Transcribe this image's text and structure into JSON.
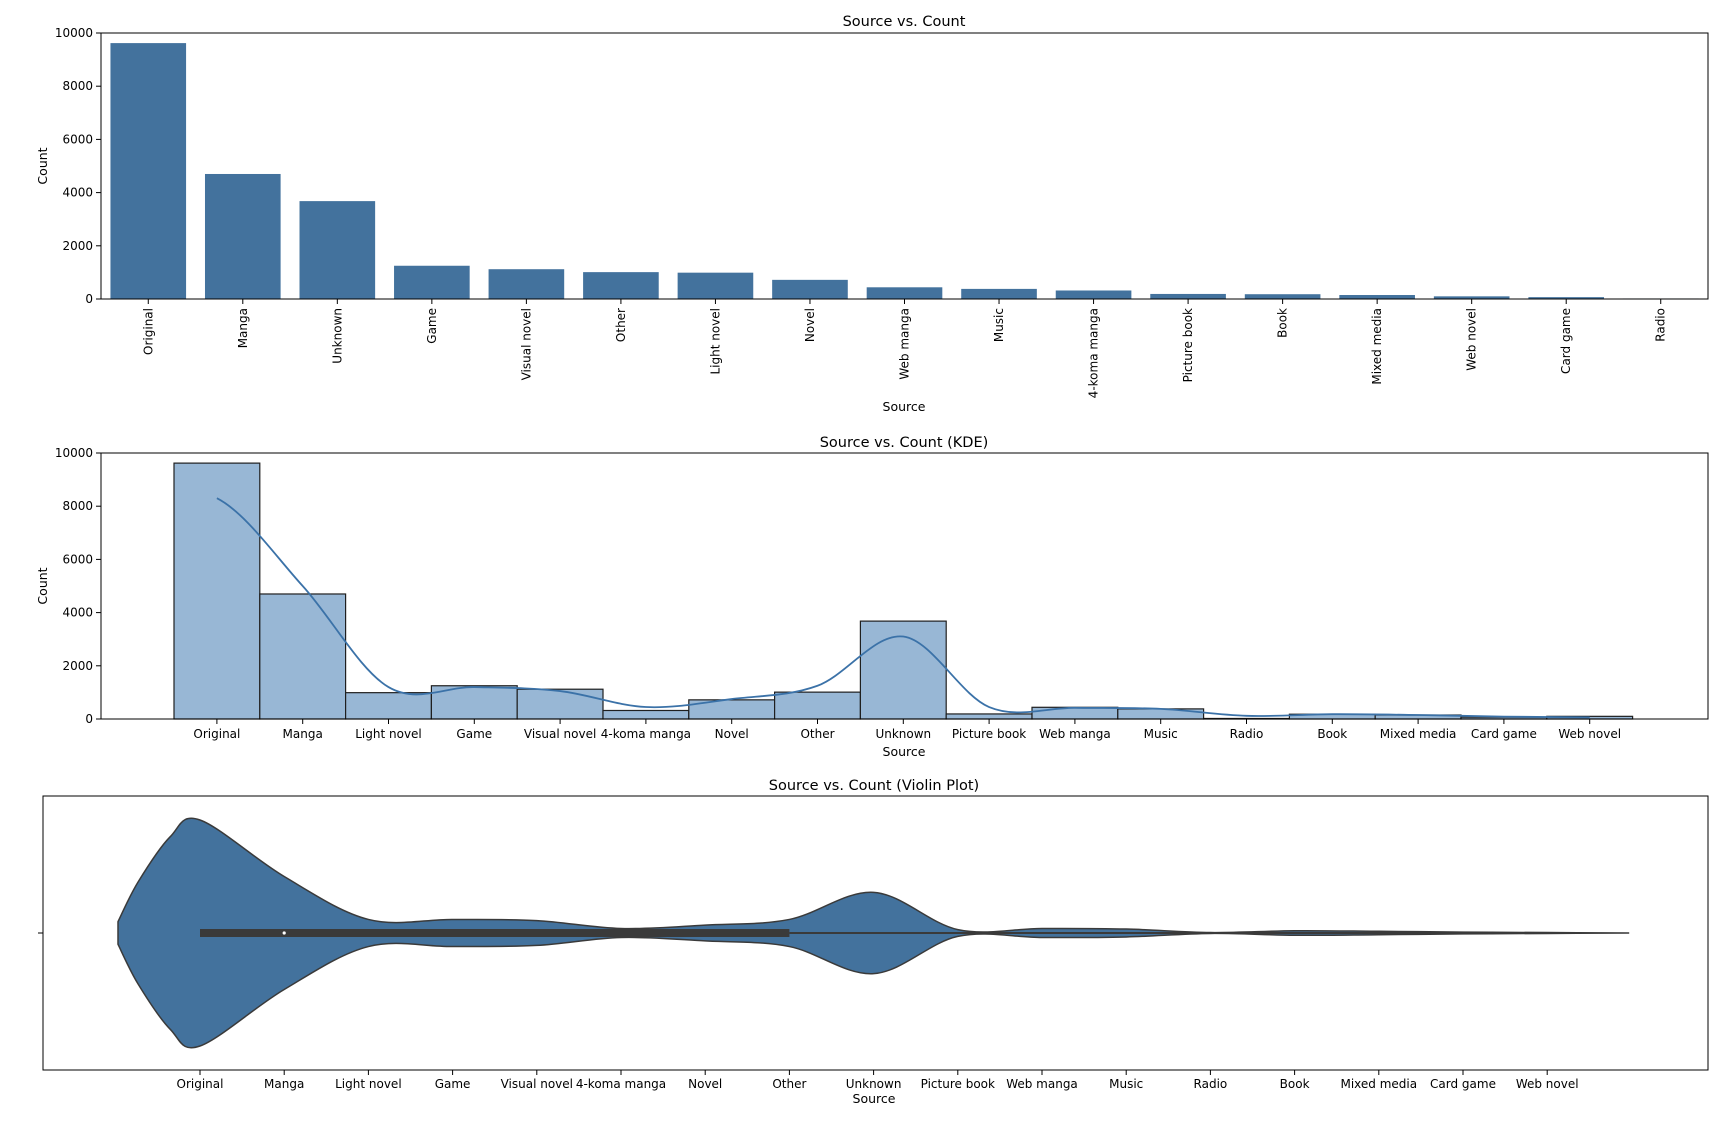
{
  "colors": {
    "bar": "#43729d",
    "hist_fill": "#98b7d5",
    "hist_edge": "#1f1f1f",
    "kde_line": "#3b72a8",
    "violin_fill": "#43729d",
    "violin_edge": "#3a3a3a",
    "box": "#3a3a3a"
  },
  "chart_data": [
    {
      "type": "bar",
      "title": "Source vs. Count",
      "xlabel": "Source",
      "ylabel": "Count",
      "ylim": [
        0,
        10000
      ],
      "yticks": [
        0,
        2000,
        4000,
        6000,
        8000,
        10000
      ],
      "categories": [
        "Original",
        "Manga",
        "Unknown",
        "Game",
        "Visual novel",
        "Other",
        "Light novel",
        "Novel",
        "Web manga",
        "Music",
        "4-koma manga",
        "Picture book",
        "Book",
        "Mixed media",
        "Web novel",
        "Card game",
        "Radio"
      ],
      "values": [
        9620,
        4700,
        3680,
        1250,
        1120,
        1010,
        990,
        720,
        440,
        380,
        320,
        190,
        180,
        150,
        100,
        70,
        20
      ],
      "tick_rotation": -90,
      "grid": false
    },
    {
      "type": "histogram",
      "title": "Source vs. Count (KDE)",
      "xlabel": "Source",
      "ylabel": "Count",
      "ylim": [
        0,
        10000
      ],
      "yticks": [
        0,
        2000,
        4000,
        6000,
        8000,
        10000
      ],
      "categories": [
        "Original",
        "Manga",
        "Light novel",
        "Game",
        "Visual novel",
        "4-koma manga",
        "Novel",
        "Other",
        "Unknown",
        "Picture book",
        "Web manga",
        "Music",
        "Radio",
        "Book",
        "Mixed media",
        "Card game",
        "Web novel"
      ],
      "values": [
        9620,
        4700,
        990,
        1250,
        1120,
        320,
        720,
        1010,
        3680,
        190,
        440,
        380,
        20,
        180,
        150,
        70,
        100
      ],
      "kde": {
        "x": [
          "Original",
          "Manga",
          "Light novel",
          "Game",
          "Visual novel",
          "4-koma manga",
          "Novel",
          "Other",
          "Unknown",
          "Picture book",
          "Web manga",
          "Music",
          "Radio",
          "Book",
          "Mixed media",
          "Card game",
          "Web novel"
        ],
        "y": [
          8300,
          5000,
          1200,
          1200,
          1050,
          450,
          750,
          1250,
          3100,
          450,
          420,
          380,
          120,
          180,
          150,
          90,
          60
        ]
      },
      "grid": false
    },
    {
      "type": "violin",
      "title": "Source vs. Count (Violin Plot)",
      "xlabel": "Source",
      "ylabel": "",
      "categories": [
        "Original",
        "Manga",
        "Light novel",
        "Game",
        "Visual novel",
        "4-koma manga",
        "Novel",
        "Other",
        "Unknown",
        "Picture book",
        "Web manga",
        "Music",
        "Radio",
        "Book",
        "Mixed media",
        "Card game",
        "Web novel"
      ],
      "density": [
        1.0,
        0.5,
        0.12,
        0.12,
        0.11,
        0.04,
        0.07,
        0.12,
        0.36,
        0.03,
        0.04,
        0.035,
        0.004,
        0.02,
        0.015,
        0.008,
        0.004
      ],
      "box": {
        "q1": "Original",
        "median": "Manga",
        "q3": "Other",
        "whisker_high": "Web novel"
      },
      "grid": false
    }
  ]
}
